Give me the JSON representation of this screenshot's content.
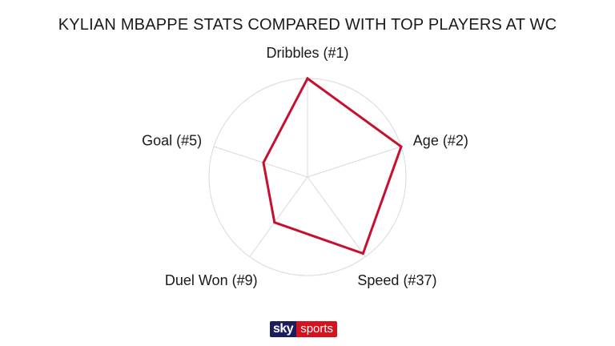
{
  "chart_data": {
    "type": "radar",
    "title": "KYLIAN MBAPPE STATS COMPARED WITH TOP PLAYERS AT WC",
    "axes": [
      "Dribbles (#1)",
      "Age (#2)",
      "Speed (#37)",
      "Duel Won (#9)",
      "Goal (#5)"
    ],
    "series": [
      {
        "values": [
          1.0,
          1.0,
          0.96,
          0.57,
          0.47
        ]
      }
    ],
    "range": [
      0,
      1
    ],
    "grid": true,
    "colors": {
      "series": "#c8102e",
      "grid": "#d9d9d9"
    }
  },
  "branding": {
    "logo_sky": "sky",
    "logo_sports": "sports"
  }
}
